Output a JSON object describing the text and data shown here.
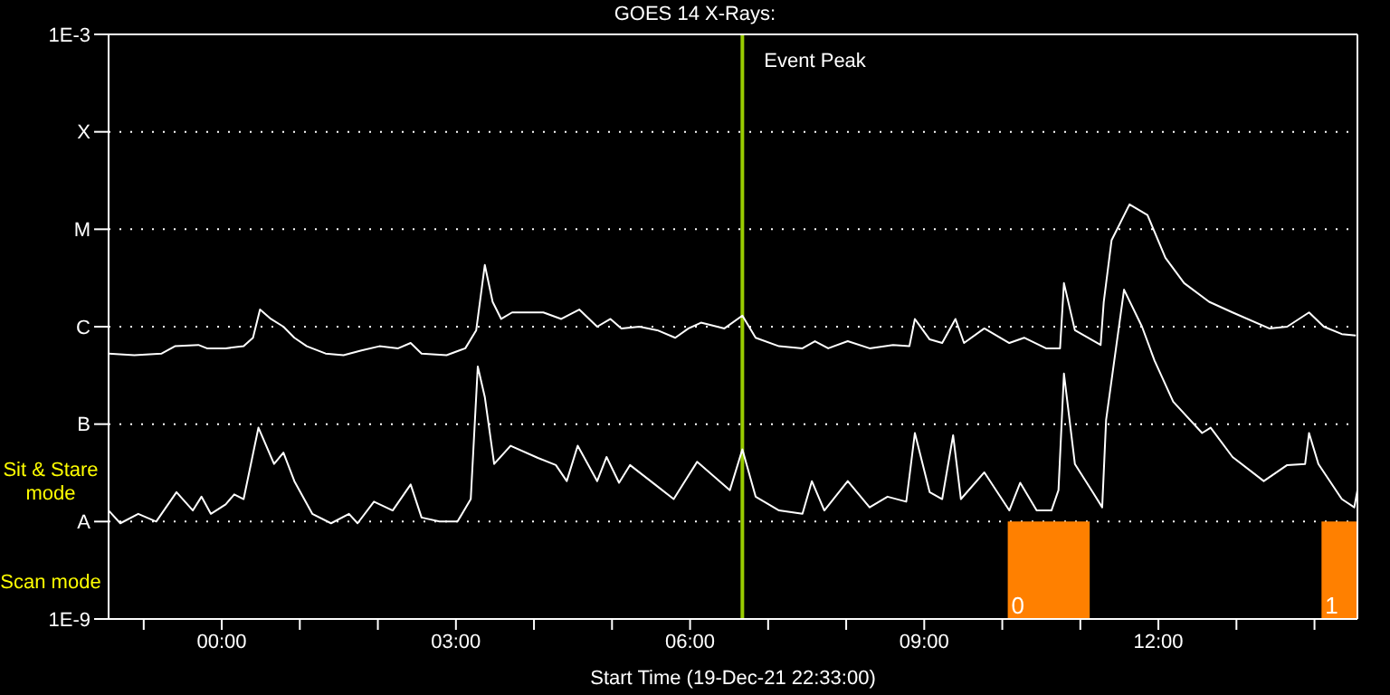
{
  "chart_data": {
    "type": "line",
    "title": "GOES 14 X-Rays:",
    "xlabel": "Start Time (19-Dec-21 22:33:00)",
    "log": "y",
    "grid": "y",
    "xlim": [
      -1.45,
      14.55
    ],
    "ylim": [
      1e-09,
      0.001
    ],
    "xticks": [
      {
        "value": -1,
        "label": null
      },
      {
        "value": 0,
        "label": "00:00"
      },
      {
        "value": 1,
        "label": null
      },
      {
        "value": 2,
        "label": null
      },
      {
        "value": 3,
        "label": "03:00"
      },
      {
        "value": 4,
        "label": null
      },
      {
        "value": 5,
        "label": null
      },
      {
        "value": 6,
        "label": "06:00"
      },
      {
        "value": 7,
        "label": null
      },
      {
        "value": 8,
        "label": null
      },
      {
        "value": 9,
        "label": "09:00"
      },
      {
        "value": 10,
        "label": null
      },
      {
        "value": 11,
        "label": null
      },
      {
        "value": 12,
        "label": "12:00"
      },
      {
        "value": 13,
        "label": null
      },
      {
        "value": 14,
        "label": null
      }
    ],
    "yticks": [
      {
        "value": 1e-09,
        "label": "1E-9"
      },
      {
        "value": 1e-08,
        "label": "A"
      },
      {
        "value": 1e-07,
        "label": "B"
      },
      {
        "value": 1e-06,
        "label": "C"
      },
      {
        "value": 1e-05,
        "label": "M"
      },
      {
        "value": 0.0001,
        "label": "X"
      },
      {
        "value": 0.001,
        "label": "1E-3"
      }
    ],
    "series": [
      {
        "color": "#ffffff",
        "x": [
          -1.45,
          -1.12,
          -0.77,
          -0.6,
          -0.3,
          -0.19,
          0.05,
          0.28,
          0.4,
          0.49,
          0.63,
          0.79,
          0.93,
          1.09,
          1.33,
          1.56,
          1.79,
          2.02,
          2.26,
          2.42,
          2.56,
          2.88,
          3.12,
          3.26,
          3.37,
          3.47,
          3.58,
          3.72,
          4.12,
          4.35,
          4.58,
          4.81,
          4.98,
          5.12,
          5.35,
          5.58,
          5.81,
          5.98,
          6.14,
          6.44,
          6.67,
          6.84,
          7.14,
          7.44,
          7.6,
          7.77,
          8.02,
          8.3,
          8.6,
          8.81,
          8.88,
          9.07,
          9.23,
          9.4,
          9.51,
          9.77,
          10.09,
          10.28,
          10.56,
          10.74,
          10.79,
          10.93,
          11.26,
          11.3,
          11.4,
          11.63,
          11.86,
          12.09,
          12.33,
          12.65,
          12.95,
          13.42,
          13.65,
          13.93,
          14.12,
          14.35,
          14.53
        ],
        "values": [
          5.3e-07,
          5.1e-07,
          5.3e-07,
          6.3e-07,
          6.5e-07,
          6e-07,
          6e-07,
          6.3e-07,
          7.7e-07,
          1.5e-06,
          1.2e-06,
          1e-06,
          7.7e-07,
          6.3e-07,
          5.3e-07,
          5.1e-07,
          5.7e-07,
          6.3e-07,
          6e-07,
          6.8e-07,
          5.3e-07,
          5.1e-07,
          6e-07,
          9.2e-07,
          4.3e-06,
          1.8e-06,
          1.2e-06,
          1.4e-06,
          1.4e-06,
          1.2e-06,
          1.5e-06,
          1e-06,
          1.2e-06,
          9.6e-07,
          1e-06,
          9.2e-07,
          7.7e-07,
          9.6e-07,
          1.1e-06,
          9.6e-07,
          1.3e-06,
          7.7e-07,
          6.3e-07,
          6e-07,
          7.1e-07,
          6e-07,
          7.1e-07,
          6e-07,
          6.5e-07,
          6.3e-07,
          1.2e-06,
          7.4e-07,
          6.8e-07,
          1.2e-06,
          6.8e-07,
          9.6e-07,
          6.8e-07,
          7.7e-07,
          6e-07,
          6e-07,
          2.8e-06,
          9.2e-07,
          6.5e-07,
          1.8e-06,
          7.7e-06,
          1.8e-05,
          1.4e-05,
          5.1e-06,
          2.8e-06,
          1.8e-06,
          1.4e-06,
          9.6e-07,
          1e-06,
          1.4e-06,
          1e-06,
          8.4e-07,
          8.1e-07
        ]
      },
      {
        "color": "#ffffff",
        "x": [
          -1.45,
          -1.3,
          -1.07,
          -0.84,
          -0.58,
          -0.37,
          -0.26,
          -0.14,
          0.05,
          0.16,
          0.28,
          0.47,
          0.67,
          0.79,
          0.93,
          1.16,
          1.4,
          1.63,
          1.74,
          1.95,
          2.19,
          2.42,
          2.56,
          2.79,
          3.02,
          3.19,
          3.28,
          3.37,
          3.49,
          3.7,
          4.05,
          4.28,
          4.42,
          4.56,
          4.81,
          4.93,
          5.09,
          5.23,
          5.58,
          5.79,
          6.09,
          6.51,
          6.67,
          6.84,
          7.14,
          7.44,
          7.56,
          7.72,
          8.02,
          8.3,
          8.53,
          8.77,
          8.88,
          9.07,
          9.23,
          9.37,
          9.47,
          9.77,
          10.09,
          10.23,
          10.44,
          10.63,
          10.72,
          10.79,
          10.93,
          11.16,
          11.28,
          11.33,
          11.56,
          11.79,
          11.95,
          12.19,
          12.56,
          12.67,
          12.95,
          13.35,
          13.65,
          13.88,
          13.93,
          14.05,
          14.35,
          14.51,
          14.55
        ],
        "values": [
          1.3e-08,
          9.6e-09,
          1.2e-08,
          1e-08,
          2e-08,
          1.3e-08,
          1.8e-08,
          1.2e-08,
          1.5e-08,
          1.9e-08,
          1.7e-08,
          9.2e-08,
          3.9e-08,
          5.1e-08,
          2.6e-08,
          1.2e-08,
          9.6e-09,
          1.2e-08,
          9.6e-09,
          1.6e-08,
          1.3e-08,
          2.4e-08,
          1.1e-08,
          1e-08,
          1e-08,
          1.7e-08,
          3.9e-07,
          1.9e-07,
          3.9e-08,
          6e-08,
          4.5e-08,
          3.8e-08,
          2.6e-08,
          6e-08,
          2.6e-08,
          4.6e-08,
          2.5e-08,
          3.8e-08,
          2.3e-08,
          1.7e-08,
          4.1e-08,
          2.1e-08,
          5.5e-08,
          1.8e-08,
          1.3e-08,
          1.2e-08,
          2.6e-08,
          1.3e-08,
          2.6e-08,
          1.4e-08,
          1.8e-08,
          1.6e-08,
          8.1e-08,
          2e-08,
          1.7e-08,
          7.7e-08,
          1.7e-08,
          3.2e-08,
          1.3e-08,
          2.5e-08,
          1.3e-08,
          1.3e-08,
          2.1e-08,
          3.3e-07,
          3.9e-08,
          2e-08,
          1.4e-08,
          1.1e-07,
          2.4e-06,
          1e-06,
          4.5e-07,
          1.7e-07,
          8.1e-08,
          9.2e-08,
          4.6e-08,
          2.6e-08,
          3.8e-08,
          3.9e-08,
          8.1e-08,
          3.9e-08,
          1.7e-08,
          1.4e-08,
          2.1e-08
        ]
      }
    ],
    "ref_lines": [
      {
        "axis": "x",
        "value": 6.67,
        "label": "Event Peak",
        "color": "#99cc00"
      }
    ],
    "bands": [
      {
        "axis": "x",
        "from": 10.07,
        "to": 11.12,
        "label": "0",
        "color": "#ff8000"
      },
      {
        "axis": "x",
        "from": 14.09,
        "to": 14.55,
        "label": "1",
        "color": "#ff8000"
      }
    ],
    "annotations": [
      "Sit & Stare mode",
      "Scan mode"
    ]
  }
}
